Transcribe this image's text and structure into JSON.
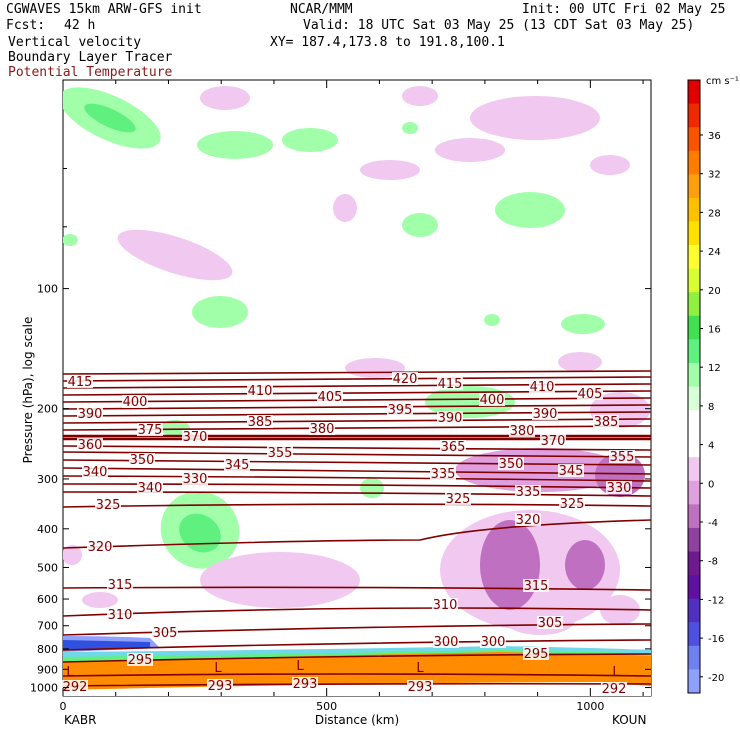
{
  "header": {
    "model": "CGWAVES 15km ARW-GFS init",
    "fcst_label": "Fcst:",
    "fcst_value": "42 h",
    "org": "NCAR/MMM",
    "init": "Init: 00 UTC Fri 02 May 25",
    "valid": "Valid: 18 UTC Sat 03 May 25 (13 CDT Sat 03 May 25)",
    "xy": "XY= 187.4,173.8 to 191.8,100.1",
    "field1": "Vertical velocity",
    "field2": "Boundary Layer Tracer",
    "field3": "Potential Temperature"
  },
  "chart_data": {
    "type": "cross-section",
    "xlabel": "Distance (km)",
    "ylabel": "Pressure (hPa), log scale",
    "x_ticks": [
      "0",
      "500",
      "1000"
    ],
    "x_tick_values": [
      0,
      500,
      1000
    ],
    "xlim": [
      0,
      1115
    ],
    "y_ticks": [
      "100",
      "200",
      "300",
      "400",
      "500",
      "600",
      "700",
      "800",
      "900",
      "1000"
    ],
    "y_tick_values": [
      100,
      200,
      300,
      400,
      500,
      600,
      700,
      800,
      900,
      1000
    ],
    "ylim": [
      1050,
      30
    ],
    "left_station": "KABR",
    "right_station": "KOUN",
    "colorbar": {
      "unit": "cm s⁻¹",
      "labels": [
        "36",
        "32",
        "28",
        "24",
        "20",
        "16",
        "12",
        "8",
        "4",
        "0",
        "-4",
        "-8",
        "-12",
        "-16",
        "-20"
      ],
      "colors": [
        "#e00000",
        "#ee2a00",
        "#f85400",
        "#ff7c00",
        "#ff9f10",
        "#ffc000",
        "#ffe000",
        "#ffff30",
        "#d8ff30",
        "#90f040",
        "#40e050",
        "#60f080",
        "#a0ffa8",
        "#d8ffd8",
        "#ffffff",
        "#ffffff",
        "#f0c8f0",
        "#e0a0e0",
        "#c070c0",
        "#9040a0",
        "#701890",
        "#6010a0",
        "#5030c0",
        "#5050e0",
        "#7080f0",
        "#90a0ff"
      ]
    },
    "theta_contour_labels": [
      "415",
      "410",
      "405",
      "420",
      "415",
      "410",
      "405",
      "400",
      "400",
      "395",
      "390",
      "390",
      "390",
      "385",
      "385",
      "375",
      "370",
      "380",
      "380",
      "370",
      "360",
      "350",
      "355",
      "345",
      "365",
      "350",
      "345",
      "355",
      "340",
      "335",
      "340",
      "330",
      "335",
      "330",
      "325",
      "325",
      "325",
      "320",
      "320",
      "315",
      "315",
      "310",
      "310",
      "305",
      "305",
      "300",
      "300",
      "295",
      "295",
      "292",
      "293",
      "293",
      "293",
      "292"
    ],
    "theta_levels": [
      292,
      293,
      295,
      300,
      305,
      310,
      315,
      320,
      325,
      330,
      335,
      340,
      345,
      350,
      355,
      360,
      365,
      370,
      375,
      380,
      385,
      390,
      395,
      400,
      405,
      410,
      415,
      420
    ],
    "low_labels": [
      "L",
      "L",
      "L",
      "L",
      "L"
    ]
  }
}
